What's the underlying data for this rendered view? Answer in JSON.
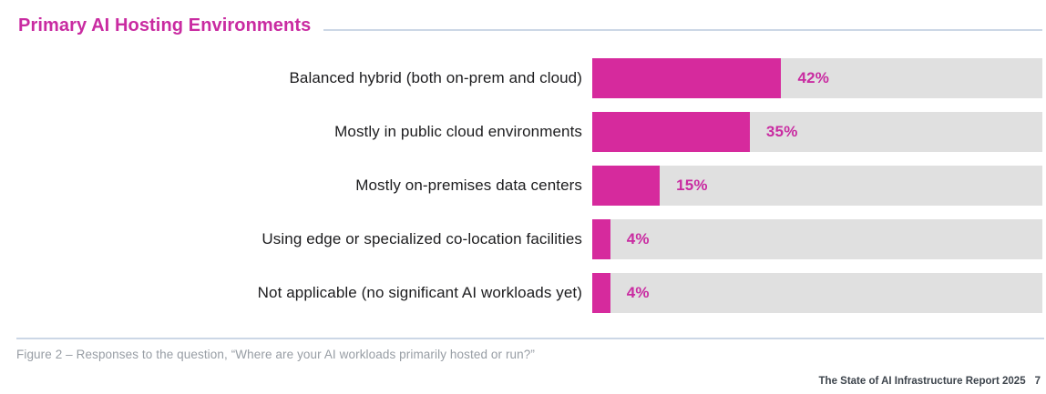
{
  "page": {
    "title": "Primary AI Hosting Environments",
    "caption": "Figure 2 – Responses to the question, “Where are your AI workloads primarily hosted or run?”",
    "footer": {
      "report_title": "The State of AI Infrastructure Report 2025",
      "page_number": "7"
    }
  },
  "chart_data": {
    "type": "bar",
    "orientation": "horizontal",
    "title": "Primary AI Hosting Environments",
    "categories": [
      "Balanced hybrid (both on-prem and cloud)",
      "Mostly in public cloud environments",
      "Mostly on-premises data centers",
      "Using edge or specialized co-location facilities",
      "Not applicable (no significant AI workloads yet)"
    ],
    "values": [
      42,
      35,
      15,
      4,
      4
    ],
    "value_labels": [
      "42%",
      "35%",
      "15%",
      "4%",
      "4%"
    ],
    "xlim": [
      0,
      100
    ],
    "grid": false,
    "legend": false,
    "colors": {
      "bar": "#d62a9d",
      "track": "#e0e0e0",
      "value_label": "#c92ba1",
      "category_label": "#1c1c1e",
      "title": "#c92ba1",
      "rule": "#ccd7e6",
      "caption": "#979da4"
    }
  }
}
